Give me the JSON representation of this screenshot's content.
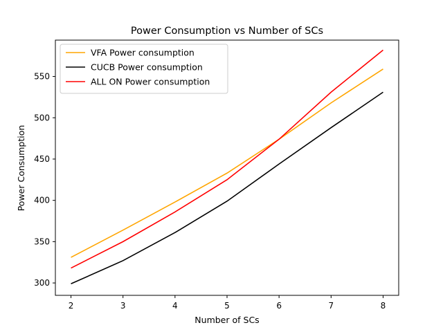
{
  "chart_data": {
    "type": "line",
    "title": "Power Consumption vs Number of SCs",
    "xlabel": "Number of SCs",
    "ylabel": "Power Consumption",
    "x": [
      2,
      3,
      4,
      5,
      6,
      7,
      8
    ],
    "x_ticks": [
      2,
      3,
      4,
      5,
      6,
      7,
      8
    ],
    "y_ticks": [
      300,
      350,
      400,
      450,
      500,
      550
    ],
    "xlim": [
      1.7,
      8.3
    ],
    "ylim": [
      285,
      594
    ],
    "grid": false,
    "legend_position": "top-left",
    "series": [
      {
        "name": "VFA Power consumption",
        "color": "#FFA500",
        "values": [
          331,
          364,
          398,
          433,
          474,
          518,
          559
        ]
      },
      {
        "name": "CUCB Power consumption",
        "color": "#000000",
        "values": [
          299,
          327,
          361,
          399,
          444,
          488,
          531
        ]
      },
      {
        "name": "ALL ON Power consumption",
        "color": "#FF0000",
        "values": [
          318,
          350,
          386,
          425,
          474,
          531,
          582
        ]
      }
    ]
  }
}
